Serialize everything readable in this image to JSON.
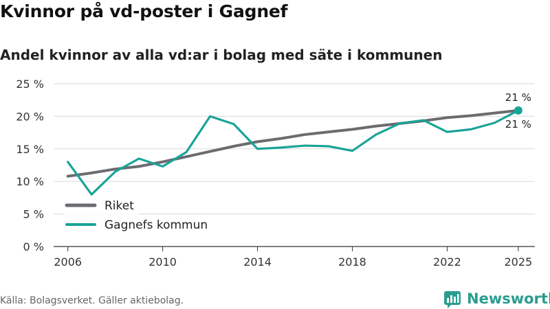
{
  "header": {
    "title": "Kvinnor på vd-poster i Gagnef",
    "subtitle": "Andel kvinnor av alla vd:ar i bolag med säte i kommunen"
  },
  "footer": {
    "source": "Källa: Bolagsverket. Gäller aktiebolag.",
    "brand": "Newsworthy"
  },
  "colors": {
    "riket": "#6b6b70",
    "kommun": "#1aa398",
    "grid": "#d9d9d9",
    "brand": "#2a9d8f"
  },
  "chart_data": {
    "type": "line",
    "title": "Kvinnor på vd-poster i Gagnef",
    "subtitle": "Andel kvinnor av alla vd:ar i bolag med säte i kommunen",
    "xlabel": "",
    "ylabel": "",
    "xlim": [
      2006,
      2025
    ],
    "ylim": [
      0,
      25
    ],
    "x_ticks": [
      2006,
      2010,
      2014,
      2018,
      2022,
      2025
    ],
    "y_ticks": [
      {
        "value": 0,
        "label": "0 %"
      },
      {
        "value": 5,
        "label": "5 %"
      },
      {
        "value": 10,
        "label": "10 %"
      },
      {
        "value": 15,
        "label": "15 %"
      },
      {
        "value": 20,
        "label": "20 %"
      },
      {
        "value": 25,
        "label": "25 %"
      }
    ],
    "grid": true,
    "legend_position": "bottom-left",
    "x": [
      2006,
      2007,
      2008,
      2009,
      2010,
      2011,
      2012,
      2013,
      2014,
      2015,
      2016,
      2017,
      2018,
      2019,
      2020,
      2021,
      2022,
      2023,
      2024,
      2025
    ],
    "series": [
      {
        "name": "Riket",
        "color": "#6b6b70",
        "values": [
          10.8,
          11.3,
          11.9,
          12.3,
          13.0,
          13.8,
          14.6,
          15.4,
          16.1,
          16.6,
          17.2,
          17.6,
          18.0,
          18.5,
          18.9,
          19.3,
          19.8,
          20.1,
          20.5,
          20.9
        ],
        "end_label": "21 %"
      },
      {
        "name": "Gagnefs kommun",
        "color": "#1aa398",
        "values": [
          13.0,
          8.0,
          11.5,
          13.5,
          12.3,
          14.5,
          20.0,
          18.8,
          15.0,
          15.2,
          15.5,
          15.4,
          14.7,
          17.2,
          18.9,
          19.4,
          17.6,
          18.0,
          19.0,
          20.9
        ],
        "end_label": "21 %"
      }
    ]
  }
}
